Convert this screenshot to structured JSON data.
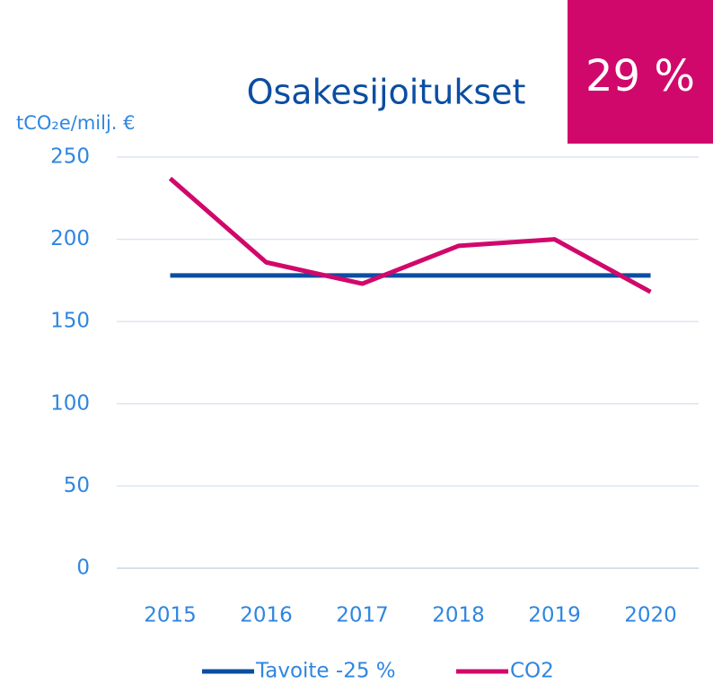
{
  "chart_data": {
    "type": "line",
    "title": "Osakesijoitukset",
    "badge": "29 %",
    "y_label": "tCO₂e/milj. €",
    "categories": [
      "2015",
      "2016",
      "2017",
      "2018",
      "2019",
      "2020"
    ],
    "series": [
      {
        "name": "Tavoite -25 %",
        "color": "#0b4ea2",
        "values": [
          178,
          178,
          178,
          178,
          178,
          178
        ]
      },
      {
        "name": "CO2",
        "color": "#d1086b",
        "values": [
          237,
          186,
          173,
          196,
          200,
          168
        ]
      }
    ],
    "ylim": [
      0,
      250
    ],
    "yticks": [
      0,
      50,
      100,
      150,
      200,
      250
    ],
    "grid": true,
    "legend": "bottom"
  }
}
